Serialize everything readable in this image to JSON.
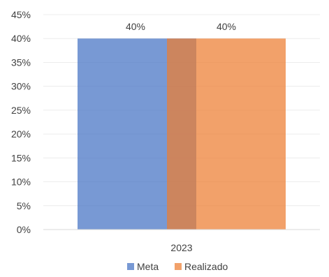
{
  "chart_data": {
    "type": "bar",
    "categories": [
      "2023"
    ],
    "series": [
      {
        "name": "Meta",
        "values": [
          40
        ],
        "color": "#4472C4",
        "data_label": "40%"
      },
      {
        "name": "Realizado",
        "values": [
          40
        ],
        "color": "#ED7D31",
        "data_label": "40%"
      }
    ],
    "ylim": [
      0,
      45
    ],
    "y_ticks": [
      "0%",
      "5%",
      "10%",
      "15%",
      "20%",
      "25%",
      "30%",
      "35%",
      "40%",
      "45%"
    ],
    "overlapping_bars": true,
    "grid": true,
    "legend_position": "bottom"
  }
}
